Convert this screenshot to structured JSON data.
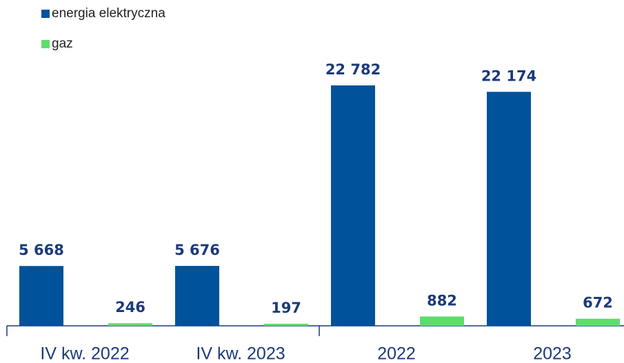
{
  "chart_data": {
    "type": "bar",
    "categories": [
      "IV kw. 2022",
      "IV kw. 2023",
      "2022",
      "2023"
    ],
    "legend": "top-left",
    "series": [
      {
        "name": "energia elektryczna",
        "color": "#00529b",
        "values": [
          5668,
          5676,
          22782,
          22174
        ],
        "value_labels": [
          "5 668",
          "5 676",
          "22 782",
          "22 174"
        ]
      },
      {
        "name": "gaz",
        "color": "#5fdc6b",
        "values": [
          246,
          197,
          882,
          672
        ],
        "value_labels": [
          "246",
          "197",
          "882",
          "672"
        ]
      }
    ]
  }
}
